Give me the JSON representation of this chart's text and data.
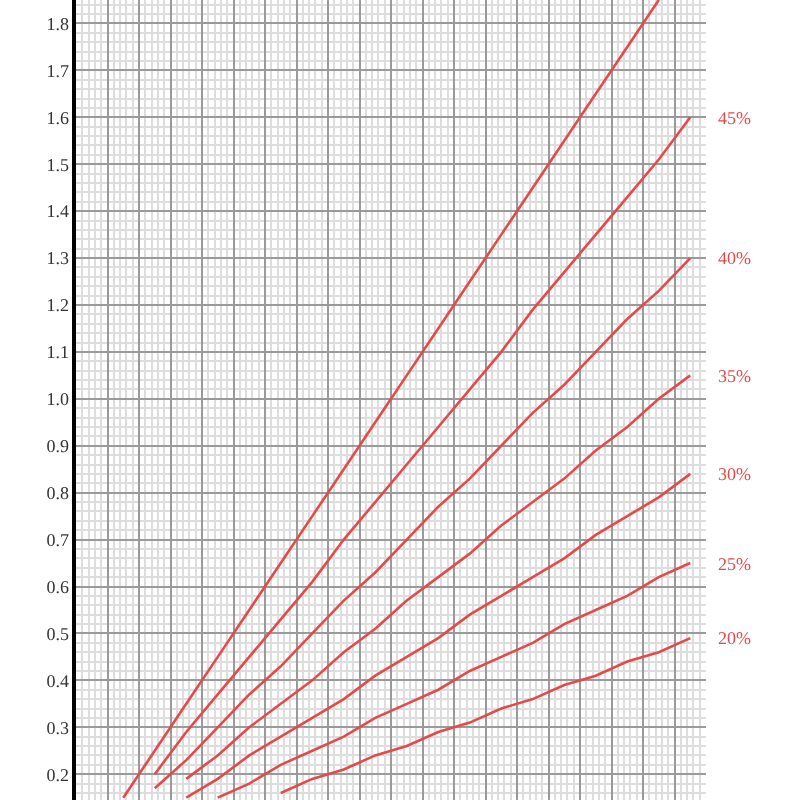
{
  "chart_data": {
    "type": "line",
    "categories": [
      null,
      null,
      null,
      null,
      null,
      null,
      null,
      null,
      null,
      null,
      null,
      null,
      null,
      null,
      null,
      null,
      null,
      null,
      null,
      null
    ],
    "series": [
      {
        "name": "45%",
        "color": "#e34a4a",
        "values": [
          null,
          null,
          0.2,
          0.29,
          0.37,
          0.45,
          0.53,
          0.61,
          0.7,
          0.78,
          0.86,
          0.94,
          1.02,
          1.1,
          1.19,
          1.27,
          1.35,
          1.43,
          1.51,
          1.6
        ]
      },
      {
        "name": "40%",
        "color": "#e34a4a",
        "values": [
          null,
          null,
          0.17,
          0.23,
          0.3,
          0.37,
          0.43,
          0.5,
          0.57,
          0.63,
          0.7,
          0.77,
          0.83,
          0.9,
          0.97,
          1.03,
          1.1,
          1.17,
          1.23,
          1.3
        ]
      },
      {
        "name": "35%",
        "color": "#e34a4a",
        "values": [
          null,
          null,
          null,
          0.19,
          0.24,
          0.3,
          0.35,
          0.4,
          0.46,
          0.51,
          0.57,
          0.62,
          0.67,
          0.73,
          0.78,
          0.83,
          0.89,
          0.94,
          1.0,
          1.05
        ]
      },
      {
        "name": "30%",
        "color": "#e34a4a",
        "values": [
          null,
          null,
          null,
          0.15,
          0.19,
          0.24,
          0.28,
          0.32,
          0.36,
          0.41,
          0.45,
          0.49,
          0.54,
          0.58,
          0.62,
          0.66,
          0.71,
          0.75,
          0.79,
          0.84
        ]
      },
      {
        "name": "25%",
        "color": "#e34a4a",
        "values": [
          null,
          null,
          null,
          null,
          0.15,
          0.18,
          0.22,
          0.25,
          0.28,
          0.32,
          0.35,
          0.38,
          0.42,
          0.45,
          0.48,
          0.52,
          0.55,
          0.58,
          0.62,
          0.65
        ]
      },
      {
        "name": "20%",
        "color": "#e34a4a",
        "values": [
          null,
          null,
          null,
          null,
          null,
          null,
          0.16,
          0.19,
          0.21,
          0.24,
          0.26,
          0.29,
          0.31,
          0.34,
          0.36,
          0.39,
          0.41,
          0.44,
          0.46,
          0.49
        ]
      },
      {
        "color": "#e34a4a",
        "values": [
          null,
          0.15,
          0.25,
          0.35,
          0.45,
          0.55,
          0.65,
          0.75,
          0.85,
          0.95,
          1.05,
          1.15,
          1.25,
          1.35,
          1.45,
          1.55,
          1.65,
          1.75,
          1.85,
          null
        ]
      }
    ],
    "ylim": [
      0.145,
      1.85
    ],
    "yticks": [
      0.2,
      0.3,
      0.4,
      0.5,
      0.6,
      0.7,
      0.8,
      0.9,
      {
        "value": 1.0,
        "label": "1.0"
      },
      1.1,
      1.2,
      1.3,
      1.4,
      1.5,
      1.6,
      1.7,
      1.8
    ],
    "grid": true,
    "legend": false,
    "marker": "none",
    "line_style": "solid",
    "tick_labels": "y"
  }
}
